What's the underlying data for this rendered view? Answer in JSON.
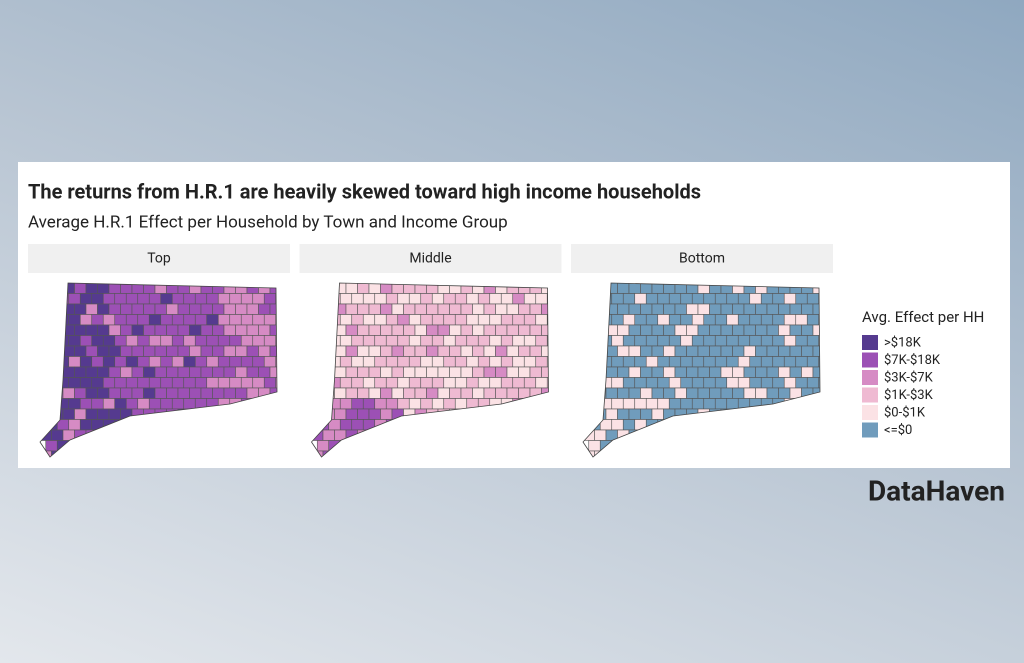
{
  "header": {
    "title": "The returns from H.R.1 are heavily skewed toward high income households",
    "subtitle": "Average H.R.1 Effect per Household by Town and Income Group"
  },
  "panels": [
    "Top",
    "Middle",
    "Bottom"
  ],
  "legend": {
    "title": "Avg. Effect per HH",
    "items": [
      {
        "label": ">$18K",
        "color": "#553a8f"
      },
      {
        "label": "$7K-$18K",
        "color": "#9c50b5"
      },
      {
        "label": "$3K-$7K",
        "color": "#d68bc4"
      },
      {
        "label": "$1K-$3K",
        "color": "#efbad2"
      },
      {
        "label": "$0-$1K",
        "color": "#fbe2e5"
      },
      {
        "label": "<=$0",
        "color": "#709cbc"
      }
    ]
  },
  "brand": "DataHaven"
}
